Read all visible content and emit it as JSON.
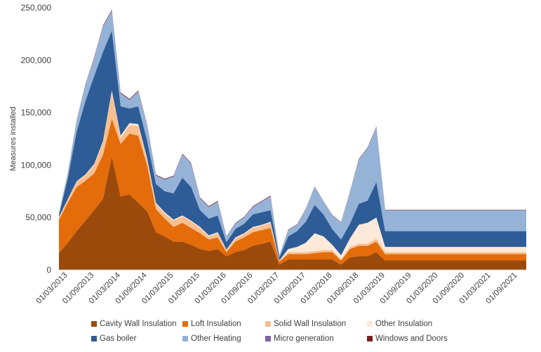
{
  "chart_data": {
    "type": "area",
    "stacked": true,
    "title": "",
    "xlabel": "",
    "ylabel": "Measures installed",
    "ylim": [
      0,
      250000
    ],
    "y_ticks": [
      0,
      50000,
      100000,
      150000,
      200000,
      250000
    ],
    "y_tick_labels": [
      "0",
      "50,000",
      "100,000",
      "150,000",
      "200,000",
      "250,000"
    ],
    "x_ticks": [
      "01/03/2013",
      "01/09/2013",
      "01/03/2014",
      "01/09/2014",
      "01/03/2015",
      "01/09/2015",
      "01/03/2016",
      "01/09/2016",
      "01/03/2017",
      "01/09/2017",
      "01/03/2018",
      "01/09/2018",
      "01/03/2019",
      "01/09/2019",
      "01/03/2020",
      "01/09/2020",
      "01/03/2021",
      "01/09/2021"
    ],
    "categories": [
      "Jan 2013",
      "Mar 2013",
      "May 2013",
      "Jul 2013",
      "Sep 2013",
      "Nov 2013",
      "Jan 2014",
      "Mar 2014",
      "May 2014",
      "Jul 2014",
      "Sep 2014",
      "Nov 2014",
      "Jan 2015",
      "Mar 2015",
      "May 2015",
      "Jul 2015",
      "Sep 2015",
      "Nov 2015",
      "Jan 2016",
      "Mar 2016",
      "May 2016",
      "Jul 2016",
      "Sep 2016",
      "Nov 2016",
      "Jan 2017",
      "Mar 2017",
      "May 2017",
      "Jul 2017",
      "Sep 2017",
      "Nov 2017",
      "Jan 2018",
      "Mar 2018",
      "May 2018",
      "Jul 2018",
      "Sep 2018",
      "Nov 2018",
      "Jan 2019",
      "Mar 2019",
      "May 2019",
      "Jul 2019",
      "Sep 2019",
      "Nov 2019",
      "Jan 2020",
      "Mar 2020",
      "May 2020",
      "Jul 2020",
      "Sep 2020",
      "Nov 2020",
      "Jan 2021",
      "Mar 2021",
      "May 2021",
      "Jul 2021",
      "Sep 2021",
      "Nov 2021"
    ],
    "series": [
      {
        "name": "Cavity Wall Insulation",
        "color": "#9c4a0c",
        "values": [
          16000,
          26000,
          37000,
          47000,
          57000,
          68000,
          108000,
          70000,
          72000,
          64000,
          56000,
          36000,
          32000,
          27000,
          27000,
          24000,
          20000,
          18000,
          20000,
          13000,
          17000,
          19000,
          23000,
          25000,
          27000,
          5000,
          10000,
          10000,
          10000,
          10000,
          10000,
          10000,
          5000,
          12000,
          13000,
          13000,
          17000,
          9000,
          9000,
          9000,
          9000,
          9000,
          9000,
          9000,
          9000,
          9000,
          9000,
          9000,
          9000,
          9000,
          9000,
          9000,
          9000,
          9000
        ]
      },
      {
        "name": "Loft Insulation",
        "color": "#e46c0a",
        "values": [
          32000,
          38000,
          42000,
          38000,
          35000,
          42000,
          36000,
          50000,
          58000,
          64000,
          44000,
          22000,
          17000,
          14000,
          18000,
          16000,
          15000,
          11000,
          11000,
          4000,
          10000,
          12000,
          13000,
          13000,
          13000,
          3000,
          5000,
          5000,
          5000,
          6000,
          7000,
          7000,
          4000,
          8000,
          10000,
          10000,
          10000,
          6000,
          6000,
          6000,
          6000,
          6000,
          6000,
          6000,
          6000,
          6000,
          6000,
          6000,
          6000,
          6000,
          6000,
          6000,
          6000,
          6000
        ]
      },
      {
        "name": "Solid Wall Insulation",
        "color": "#f9bf8f",
        "values": [
          2000,
          3000,
          5000,
          5000,
          8000,
          12000,
          25000,
          6000,
          8000,
          9000,
          5000,
          5000,
          5000,
          6000,
          6000,
          6000,
          5000,
          3000,
          4000,
          2000,
          3000,
          3000,
          4000,
          4000,
          5000,
          500,
          2000,
          2000,
          2000,
          2000,
          2000,
          2000,
          1000,
          2000,
          2000,
          2000,
          3000,
          2000,
          2000,
          2000,
          2000,
          2000,
          2000,
          2000,
          2000,
          2000,
          2000,
          2000,
          2000,
          2000,
          2000,
          2000,
          2000,
          2000
        ]
      },
      {
        "name": "Other Insulation",
        "color": "#fde9d9",
        "values": [
          500,
          500,
          500,
          1000,
          1000,
          1000,
          2000,
          2000,
          2000,
          2000,
          1500,
          1000,
          1000,
          1000,
          1000,
          1000,
          1000,
          1000,
          1000,
          500,
          1000,
          1000,
          1000,
          1000,
          1000,
          500,
          3000,
          5000,
          9000,
          17000,
          13000,
          5000,
          4000,
          8000,
          18000,
          20000,
          20000,
          5000,
          5000,
          5000,
          5000,
          5000,
          5000,
          5000,
          5000,
          5000,
          5000,
          5000,
          5000,
          5000,
          5000,
          5000,
          5000,
          5000
        ]
      },
      {
        "name": "Gas boiler",
        "color": "#2e5c97",
        "values": [
          2000,
          20000,
          47000,
          70000,
          84000,
          85000,
          57000,
          28000,
          14000,
          17000,
          17000,
          18000,
          20000,
          25000,
          36000,
          32000,
          16000,
          16000,
          16000,
          7000,
          8000,
          9000,
          12000,
          12000,
          11000,
          3000,
          12000,
          15000,
          20000,
          27000,
          21000,
          15000,
          15000,
          14000,
          20000,
          21000,
          34000,
          15000,
          15000,
          15000,
          15000,
          15000,
          15000,
          15000,
          15000,
          15000,
          15000,
          15000,
          15000,
          15000,
          15000,
          15000,
          15000,
          15000
        ]
      },
      {
        "name": "Other Heating",
        "color": "#95b3d7",
        "values": [
          1000,
          4000,
          10000,
          15000,
          17000,
          24000,
          19000,
          12000,
          8000,
          14000,
          14000,
          8000,
          11000,
          16000,
          22000,
          22000,
          11000,
          11000,
          13000,
          5000,
          5000,
          6000,
          7000,
          10000,
          13000,
          1500,
          6000,
          6000,
          12000,
          17000,
          12000,
          13000,
          16000,
          30000,
          42000,
          50000,
          52000,
          20000,
          20000,
          20000,
          20000,
          20000,
          20000,
          20000,
          20000,
          20000,
          20000,
          20000,
          20000,
          20000,
          20000,
          20000,
          20000,
          20000
        ]
      },
      {
        "name": "Micro generation",
        "color": "#7f64a2",
        "values": [
          200,
          300,
          400,
          500,
          500,
          600,
          600,
          500,
          500,
          500,
          500,
          400,
          400,
          400,
          400,
          400,
          400,
          400,
          400,
          300,
          300,
          300,
          300,
          300,
          300,
          100,
          200,
          200,
          200,
          200,
          200,
          200,
          200,
          300,
          400,
          400,
          400,
          200,
          200,
          200,
          200,
          200,
          200,
          200,
          200,
          200,
          200,
          200,
          200,
          200,
          200,
          200,
          200,
          200
        ]
      },
      {
        "name": "Windows and Doors",
        "color": "#7a1f1f",
        "values": [
          200,
          300,
          400,
          500,
          500,
          600,
          600,
          600,
          600,
          600,
          500,
          500,
          500,
          500,
          500,
          500,
          500,
          500,
          500,
          300,
          400,
          400,
          500,
          500,
          600,
          200,
          300,
          300,
          300,
          300,
          300,
          300,
          300,
          300,
          400,
          400,
          500,
          300,
          300,
          300,
          300,
          300,
          300,
          300,
          300,
          300,
          300,
          300,
          300,
          300,
          300,
          300,
          300,
          300
        ]
      }
    ]
  }
}
